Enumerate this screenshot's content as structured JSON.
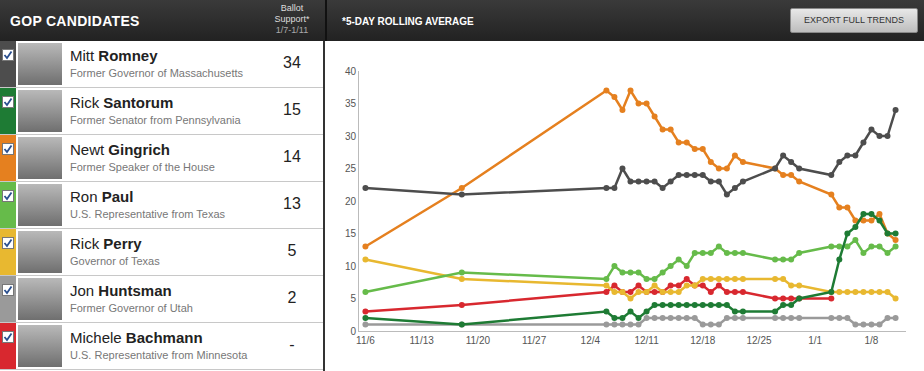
{
  "header": {
    "title": "GOP CANDIDATES",
    "support_label": "Ballot Support*",
    "support_dates": "1/7-1/11"
  },
  "note": "*5-DAY ROLLING AVERAGE",
  "button": "EXPORT FULL TRENDS",
  "chart_data": {
    "type": "line",
    "marker": "circle",
    "grid": false,
    "categories": [
      "11/6",
      null,
      null,
      null,
      null,
      null,
      null,
      "11/13",
      null,
      null,
      null,
      null,
      null,
      null,
      "11/20",
      null,
      null,
      null,
      null,
      null,
      null,
      "11/27",
      null,
      null,
      null,
      null,
      null,
      null,
      "12/4",
      null,
      null,
      null,
      null,
      null,
      null,
      "12/11",
      null,
      null,
      null,
      null,
      null,
      null,
      "12/18",
      null,
      null,
      null,
      null,
      null,
      null,
      "12/25",
      null,
      null,
      null,
      null,
      null,
      null,
      "1/1",
      null,
      null,
      null,
      null,
      null,
      null,
      "1/8",
      null,
      null,
      null
    ],
    "ylim": [
      0,
      40
    ],
    "yticks": [
      0,
      5,
      10,
      15,
      20,
      25,
      30,
      35,
      40
    ],
    "series": [
      {
        "name": "Mitt Romney",
        "title": "Former Governor of Massachusetts",
        "support": 34,
        "color": "#4d4d4d",
        "values": [
          22,
          null,
          null,
          null,
          null,
          null,
          null,
          null,
          null,
          null,
          null,
          null,
          21,
          null,
          null,
          null,
          null,
          null,
          null,
          null,
          null,
          null,
          null,
          null,
          null,
          null,
          null,
          null,
          null,
          null,
          22,
          22,
          25,
          23,
          23,
          23,
          23,
          22,
          23,
          24,
          24,
          24,
          24,
          23,
          23,
          21,
          22,
          23,
          null,
          null,
          null,
          25,
          27,
          26,
          25,
          null,
          null,
          null,
          24,
          26,
          27,
          27,
          29,
          31,
          30,
          30,
          34
        ]
      },
      {
        "name": "Rick Santorum",
        "title": "Former Senator from Pennsylvania",
        "support": 15,
        "color": "#1e7b34",
        "values": [
          2,
          null,
          null,
          null,
          null,
          null,
          null,
          null,
          null,
          null,
          null,
          null,
          1,
          null,
          null,
          null,
          null,
          null,
          null,
          null,
          null,
          null,
          null,
          null,
          null,
          null,
          null,
          null,
          null,
          null,
          3,
          2,
          2,
          3,
          2,
          3,
          4,
          4,
          4,
          4,
          4,
          4,
          4,
          4,
          4,
          4,
          3,
          3,
          null,
          null,
          null,
          3,
          4,
          4,
          5,
          null,
          null,
          null,
          6,
          11,
          15,
          16,
          18,
          18,
          17,
          15,
          15
        ]
      },
      {
        "name": "Newt Gingrich",
        "title": "Former Speaker of the House",
        "support": 14,
        "color": "#e5801f",
        "values": [
          13,
          null,
          null,
          null,
          null,
          null,
          null,
          null,
          null,
          null,
          null,
          null,
          22,
          null,
          null,
          null,
          null,
          null,
          null,
          null,
          null,
          null,
          null,
          null,
          null,
          null,
          null,
          null,
          null,
          null,
          37,
          36,
          34,
          37,
          35,
          35,
          33,
          31,
          31,
          29,
          29,
          28,
          28,
          26,
          25,
          25,
          27,
          26,
          null,
          null,
          null,
          25,
          24,
          24,
          23,
          null,
          null,
          null,
          21,
          19,
          19,
          17,
          17,
          17,
          18,
          15,
          14
        ]
      },
      {
        "name": "Ron Paul",
        "title": "U.S. Representative from Texas",
        "support": 13,
        "color": "#66bb4a",
        "values": [
          6,
          null,
          null,
          null,
          null,
          null,
          null,
          null,
          null,
          null,
          null,
          null,
          9,
          null,
          null,
          null,
          null,
          null,
          null,
          null,
          null,
          null,
          null,
          null,
          null,
          null,
          null,
          null,
          null,
          null,
          8,
          10,
          9,
          9,
          9,
          8,
          8,
          9,
          10,
          11,
          10,
          12,
          12,
          12,
          13,
          12,
          12,
          12,
          null,
          null,
          null,
          11,
          11,
          11,
          12,
          null,
          null,
          null,
          13,
          13,
          13,
          14,
          12,
          13,
          13,
          12,
          13
        ]
      },
      {
        "name": "Rick Perry",
        "title": "Governor of Texas",
        "support": 5,
        "color": "#e8b830",
        "values": [
          11,
          null,
          null,
          null,
          null,
          null,
          null,
          null,
          null,
          null,
          null,
          null,
          8,
          null,
          null,
          null,
          null,
          null,
          null,
          null,
          null,
          null,
          null,
          null,
          null,
          null,
          null,
          null,
          null,
          null,
          7,
          6,
          6,
          5,
          6,
          6,
          7,
          6,
          6,
          6,
          7,
          7,
          8,
          8,
          8,
          8,
          8,
          8,
          null,
          null,
          null,
          8,
          8,
          7,
          7,
          null,
          null,
          null,
          6,
          6,
          6,
          6,
          6,
          6,
          6,
          6,
          5
        ]
      },
      {
        "name": "Jon Huntsman",
        "title": "Former Governor of Utah",
        "support": 2,
        "color": "#9a9a9a",
        "values": [
          1,
          null,
          null,
          null,
          null,
          null,
          null,
          null,
          null,
          null,
          null,
          null,
          1,
          null,
          null,
          null,
          null,
          null,
          null,
          null,
          null,
          null,
          null,
          null,
          null,
          null,
          null,
          null,
          null,
          null,
          1,
          1,
          1,
          1,
          1,
          2,
          2,
          2,
          2,
          2,
          2,
          2,
          1,
          1,
          1,
          2,
          2,
          2,
          null,
          null,
          null,
          2,
          2,
          2,
          2,
          null,
          null,
          null,
          2,
          2,
          2,
          1,
          1,
          1,
          1,
          2,
          2
        ]
      },
      {
        "name": "Michele Bachmann",
        "title": "U.S. Representative from Minnesota",
        "support": "-",
        "color": "#d8282f",
        "values": [
          3,
          null,
          null,
          null,
          null,
          null,
          null,
          null,
          null,
          null,
          null,
          null,
          4,
          null,
          null,
          null,
          null,
          null,
          null,
          null,
          null,
          null,
          null,
          null,
          null,
          null,
          null,
          null,
          null,
          null,
          6,
          7,
          6,
          6,
          7,
          6,
          6,
          6,
          7,
          7,
          8,
          7,
          7,
          6,
          7,
          6,
          6,
          6,
          null,
          null,
          null,
          5,
          5,
          5,
          5,
          null,
          null,
          null,
          5,
          null,
          null,
          null,
          null,
          null,
          null,
          null,
          null
        ]
      }
    ]
  }
}
